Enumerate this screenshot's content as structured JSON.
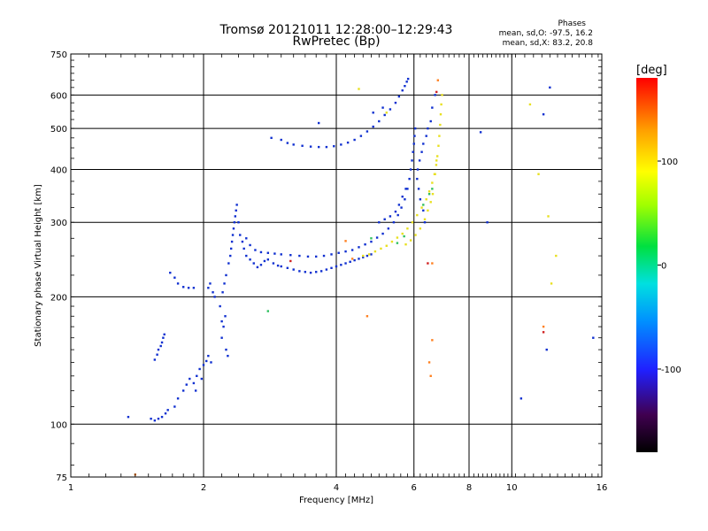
{
  "header": {
    "title_line1": "Tromsø 20121011 12:28:00–12:29:43",
    "title_line2": "RwPretec (Bp)",
    "phase_title": "Phases",
    "phase_o": "mean, sd,O: -97.5, 16.2",
    "phase_x": "mean, sd,X: 83.2, 20.8"
  },
  "colorbar": {
    "title": "[deg]",
    "ticks": [
      {
        "value": 100,
        "label": "100"
      },
      {
        "value": 0,
        "label": "0"
      },
      {
        "value": -100,
        "label": "-100"
      }
    ],
    "range": [
      -180,
      180
    ]
  },
  "chart_data": {
    "type": "scatter",
    "xlabel": "Frequency [MHz]",
    "ylabel": "Stationary phase Virtual Height [km]",
    "x_scale": "log",
    "y_scale": "log",
    "xlim": [
      1,
      16
    ],
    "ylim": [
      75,
      750
    ],
    "x_ticks": [
      {
        "value": 1,
        "label": "1"
      },
      {
        "value": 2,
        "label": "2"
      },
      {
        "value": 4,
        "label": "4"
      },
      {
        "value": 6,
        "label": "6"
      },
      {
        "value": 8,
        "label": "8"
      },
      {
        "value": 10,
        "label": "10"
      },
      {
        "value": 16,
        "label": "16"
      }
    ],
    "y_ticks": [
      {
        "value": 75,
        "label": "75"
      },
      {
        "value": 100,
        "label": "100"
      },
      {
        "value": 200,
        "label": "200"
      },
      {
        "value": 300,
        "label": "300"
      },
      {
        "value": 400,
        "label": "400"
      },
      {
        "value": 500,
        "label": "500"
      },
      {
        "value": 600,
        "label": "600"
      },
      {
        "value": 750,
        "label": "750"
      }
    ],
    "grid": true,
    "series": [
      {
        "color": "#1030d0",
        "points": [
          [
            1.35,
            104
          ],
          [
            1.52,
            103
          ],
          [
            1.55,
            102
          ],
          [
            1.58,
            103
          ],
          [
            1.61,
            104
          ],
          [
            1.64,
            106
          ],
          [
            1.66,
            108
          ],
          [
            1.55,
            142
          ],
          [
            1.57,
            146
          ],
          [
            1.58,
            150
          ],
          [
            1.6,
            153
          ],
          [
            1.61,
            156
          ],
          [
            1.62,
            160
          ],
          [
            1.63,
            163
          ],
          [
            1.68,
            228
          ],
          [
            1.72,
            222
          ],
          [
            1.75,
            215
          ],
          [
            1.8,
            211
          ],
          [
            1.85,
            210
          ],
          [
            1.9,
            210
          ],
          [
            1.72,
            110
          ],
          [
            1.75,
            115
          ],
          [
            1.8,
            120
          ],
          [
            1.83,
            124
          ],
          [
            1.86,
            128
          ],
          [
            1.9,
            125
          ],
          [
            1.93,
            130
          ],
          [
            1.96,
            135
          ],
          [
            2.0,
            138
          ],
          [
            2.03,
            141
          ],
          [
            2.05,
            145
          ],
          [
            2.08,
            140
          ],
          [
            1.98,
            128
          ],
          [
            1.92,
            120
          ],
          [
            2.05,
            210
          ],
          [
            2.07,
            215
          ],
          [
            2.1,
            205
          ],
          [
            2.12,
            200
          ],
          [
            2.18,
            190
          ],
          [
            2.2,
            175
          ],
          [
            2.22,
            170
          ],
          [
            2.24,
            180
          ],
          [
            2.2,
            160
          ],
          [
            2.25,
            150
          ],
          [
            2.27,
            145
          ],
          [
            2.21,
            205
          ],
          [
            2.23,
            215
          ],
          [
            2.25,
            225
          ],
          [
            2.28,
            240
          ],
          [
            2.3,
            250
          ],
          [
            2.31,
            260
          ],
          [
            2.32,
            270
          ],
          [
            2.33,
            280
          ],
          [
            2.34,
            290
          ],
          [
            2.35,
            300
          ],
          [
            2.36,
            310
          ],
          [
            2.37,
            320
          ],
          [
            2.38,
            330
          ],
          [
            2.4,
            300
          ],
          [
            2.42,
            280
          ],
          [
            2.45,
            270
          ],
          [
            2.47,
            260
          ],
          [
            2.5,
            250
          ],
          [
            2.55,
            245
          ],
          [
            2.6,
            240
          ],
          [
            2.65,
            235
          ],
          [
            2.7,
            238
          ],
          [
            2.75,
            243
          ],
          [
            2.8,
            245
          ],
          [
            2.88,
            240
          ],
          [
            2.95,
            237
          ],
          [
            3.0,
            236
          ],
          [
            3.1,
            234
          ],
          [
            3.2,
            232
          ],
          [
            3.3,
            230
          ],
          [
            3.4,
            229
          ],
          [
            3.5,
            228
          ],
          [
            3.6,
            229
          ],
          [
            3.7,
            230
          ],
          [
            3.8,
            232
          ],
          [
            3.9,
            234
          ],
          [
            4.0,
            236
          ],
          [
            4.1,
            238
          ],
          [
            4.2,
            240
          ],
          [
            4.3,
            242
          ],
          [
            4.4,
            244
          ],
          [
            4.5,
            246
          ],
          [
            4.6,
            248
          ],
          [
            4.7,
            250
          ],
          [
            4.8,
            252
          ],
          [
            2.5,
            275
          ],
          [
            2.55,
            265
          ],
          [
            2.62,
            258
          ],
          [
            2.7,
            255
          ],
          [
            2.8,
            254
          ],
          [
            2.9,
            253
          ],
          [
            3.0,
            252
          ],
          [
            3.15,
            251
          ],
          [
            3.3,
            250
          ],
          [
            3.45,
            249
          ],
          [
            3.6,
            249
          ],
          [
            3.75,
            250
          ],
          [
            3.9,
            252
          ],
          [
            4.05,
            254
          ],
          [
            4.2,
            256
          ],
          [
            4.35,
            258
          ],
          [
            4.5,
            262
          ],
          [
            4.65,
            266
          ],
          [
            4.8,
            270
          ],
          [
            4.95,
            276
          ],
          [
            5.1,
            282
          ],
          [
            5.25,
            290
          ],
          [
            5.4,
            300
          ],
          [
            5.52,
            312
          ],
          [
            5.62,
            325
          ],
          [
            5.72,
            340
          ],
          [
            5.8,
            360
          ],
          [
            5.86,
            380
          ],
          [
            5.9,
            400
          ],
          [
            5.94,
            420
          ],
          [
            5.97,
            440
          ],
          [
            6.0,
            460
          ],
          [
            6.02,
            480
          ],
          [
            6.04,
            500
          ],
          [
            5.0,
            300
          ],
          [
            5.15,
            305
          ],
          [
            5.3,
            310
          ],
          [
            5.45,
            318
          ],
          [
            5.55,
            330
          ],
          [
            5.65,
            345
          ],
          [
            5.75,
            360
          ],
          [
            2.85,
            475
          ],
          [
            3.0,
            470
          ],
          [
            3.1,
            462
          ],
          [
            3.2,
            458
          ],
          [
            3.35,
            455
          ],
          [
            3.5,
            453
          ],
          [
            3.65,
            452
          ],
          [
            3.8,
            452
          ],
          [
            3.95,
            454
          ],
          [
            4.1,
            458
          ],
          [
            4.25,
            463
          ],
          [
            4.4,
            470
          ],
          [
            4.55,
            480
          ],
          [
            4.7,
            492
          ],
          [
            4.85,
            505
          ],
          [
            5.0,
            520
          ],
          [
            5.15,
            538
          ],
          [
            5.3,
            555
          ],
          [
            5.45,
            575
          ],
          [
            5.55,
            595
          ],
          [
            5.65,
            615
          ],
          [
            5.72,
            630
          ],
          [
            5.78,
            645
          ],
          [
            5.82,
            655
          ],
          [
            3.65,
            515
          ],
          [
            4.85,
            545
          ],
          [
            5.1,
            560
          ],
          [
            6.1,
            380
          ],
          [
            6.15,
            360
          ],
          [
            6.2,
            340
          ],
          [
            6.3,
            320
          ],
          [
            6.35,
            300
          ],
          [
            6.12,
            400
          ],
          [
            6.18,
            420
          ],
          [
            6.25,
            440
          ],
          [
            6.3,
            460
          ],
          [
            6.4,
            480
          ],
          [
            6.45,
            500
          ],
          [
            6.55,
            520
          ],
          [
            6.6,
            560
          ],
          [
            6.7,
            600
          ],
          [
            8.5,
            490
          ],
          [
            8.8,
            300
          ],
          [
            10.5,
            115
          ],
          [
            11.8,
            540
          ],
          [
            12.0,
            150
          ],
          [
            12.2,
            625
          ],
          [
            15.3,
            160
          ]
        ]
      },
      {
        "color": "#e8e020",
        "points": [
          [
            4.6,
            250
          ],
          [
            4.75,
            252
          ],
          [
            4.9,
            256
          ],
          [
            5.05,
            260
          ],
          [
            5.2,
            264
          ],
          [
            5.35,
            270
          ],
          [
            5.5,
            276
          ],
          [
            5.65,
            282
          ],
          [
            5.8,
            290
          ],
          [
            5.95,
            300
          ],
          [
            6.1,
            312
          ],
          [
            6.25,
            325
          ],
          [
            6.4,
            340
          ],
          [
            6.5,
            355
          ],
          [
            6.6,
            372
          ],
          [
            6.68,
            390
          ],
          [
            6.74,
            410
          ],
          [
            6.78,
            430
          ],
          [
            6.82,
            455
          ],
          [
            6.85,
            480
          ],
          [
            6.88,
            510
          ],
          [
            6.9,
            540
          ],
          [
            6.92,
            570
          ],
          [
            6.95,
            600
          ],
          [
            6.7,
            390
          ],
          [
            6.75,
            420
          ],
          [
            6.62,
            350
          ],
          [
            6.55,
            335
          ],
          [
            6.45,
            320
          ],
          [
            6.35,
            305
          ],
          [
            6.2,
            290
          ],
          [
            6.05,
            280
          ],
          [
            5.9,
            272
          ],
          [
            5.75,
            266
          ],
          [
            4.5,
            620
          ],
          [
            5.2,
            545
          ],
          [
            11.5,
            390
          ],
          [
            11.0,
            570
          ],
          [
            12.1,
            310
          ],
          [
            12.3,
            215
          ],
          [
            12.6,
            250
          ]
        ]
      },
      {
        "color": "#30c060",
        "points": [
          [
            5.5,
            268
          ],
          [
            5.7,
            278
          ],
          [
            6.3,
            330
          ],
          [
            6.5,
            350
          ],
          [
            6.6,
            360
          ],
          [
            2.8,
            185
          ],
          [
            4.8,
            275
          ]
        ]
      },
      {
        "color": "#ff8020",
        "points": [
          [
            4.2,
            271
          ],
          [
            4.35,
            246
          ],
          [
            6.6,
            240
          ],
          [
            6.6,
            158
          ],
          [
            6.8,
            650
          ],
          [
            4.7,
            180
          ],
          [
            11.8,
            170
          ],
          [
            1.4,
            76
          ],
          [
            6.5,
            140
          ],
          [
            6.55,
            130
          ]
        ]
      },
      {
        "color": "#d02020",
        "points": [
          [
            6.75,
            610
          ],
          [
            6.45,
            240
          ],
          [
            3.15,
            243
          ],
          [
            11.8,
            165
          ]
        ]
      }
    ]
  }
}
